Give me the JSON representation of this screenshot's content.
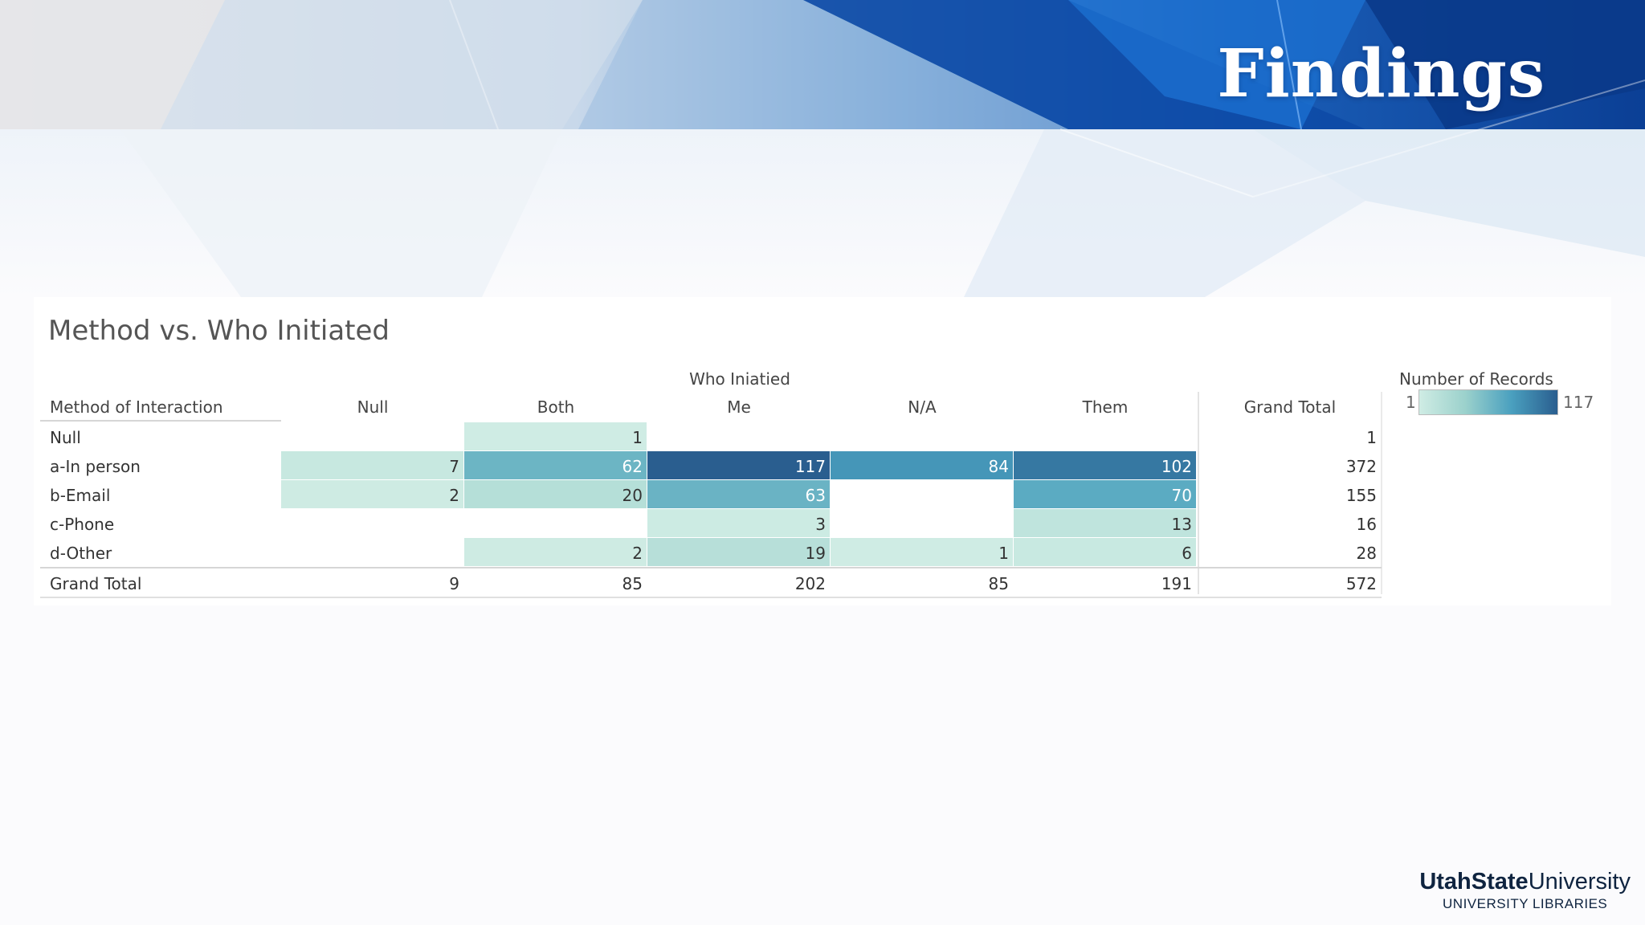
{
  "slide": {
    "title": "Findings",
    "logo_part1": "UtahState",
    "logo_part2": "University",
    "logo_subtitle": "UNIVERSITY LIBRARIES"
  },
  "chart_data": {
    "type": "table",
    "title": "Method vs. Who Initiated",
    "column_group_label": "Who Iniatied",
    "row_header": "Method of Interaction",
    "columns": [
      "Null",
      "Both",
      "Me",
      "N/A",
      "Them"
    ],
    "total_label": "Grand Total",
    "rows": [
      {
        "label": "Null",
        "values": [
          null,
          1,
          null,
          null,
          null
        ],
        "total": 1
      },
      {
        "label": "a-In person",
        "values": [
          7,
          62,
          117,
          84,
          102
        ],
        "total": 372
      },
      {
        "label": "b-Email",
        "values": [
          2,
          20,
          63,
          null,
          70
        ],
        "total": 155
      },
      {
        "label": "c-Phone",
        "values": [
          null,
          null,
          3,
          null,
          13
        ],
        "total": 16
      },
      {
        "label": "d-Other",
        "values": [
          null,
          2,
          19,
          1,
          6
        ],
        "total": 28
      }
    ],
    "column_totals": [
      9,
      85,
      202,
      85,
      191
    ],
    "grand_total": 572,
    "legend": {
      "title": "Number of Records",
      "min": 1,
      "max": 117
    }
  }
}
